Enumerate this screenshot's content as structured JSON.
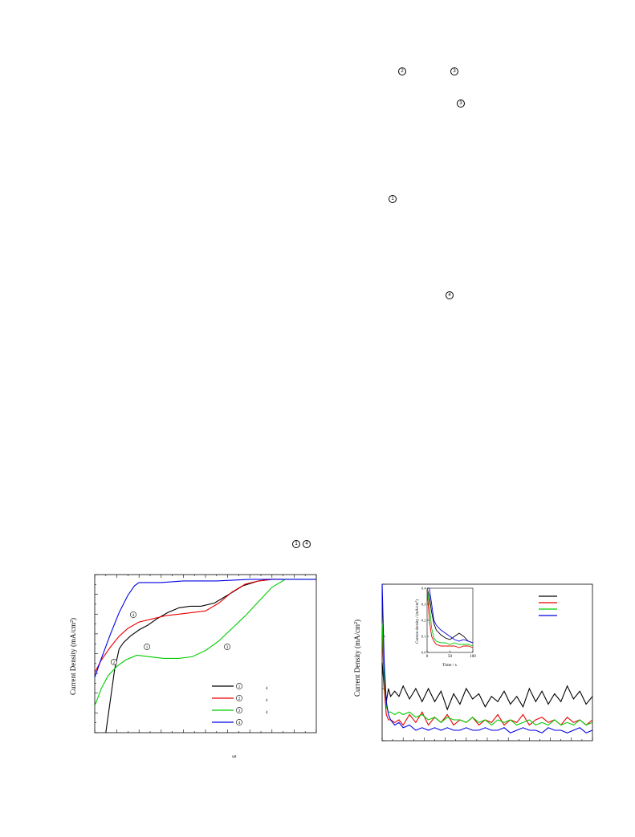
{
  "page_markers": [
    {
      "id": "m-2-top",
      "label": "2"
    },
    {
      "id": "m-3-top",
      "label": "3"
    },
    {
      "id": "m-3-mid",
      "label": "3"
    },
    {
      "id": "m-1-mid",
      "label": "1"
    },
    {
      "id": "m-4-mid",
      "label": "4"
    },
    {
      "id": "m-1-low",
      "label": "1"
    },
    {
      "id": "m-4-low",
      "label": "4"
    }
  ],
  "chart_data": [
    {
      "type": "line",
      "ylabel": "Current Density (mA/cm",
      "ylabel_sup": "2",
      "ylabel_close": ")",
      "xlabel_fragment": "sat",
      "grid": false,
      "legend_placement": "bottom-right",
      "legend": [
        {
          "marker": "1",
          "suffix": "4",
          "color": "#000000"
        },
        {
          "marker": "2",
          "suffix": "4",
          "color": "#e60000"
        },
        {
          "marker": "3",
          "suffix": "4",
          "color": "#00cc00"
        },
        {
          "marker": "4",
          "suffix": "",
          "color": "#0000e6"
        }
      ],
      "curve_markers": [
        {
          "label": "4",
          "color": "#0000e6"
        },
        {
          "label": "2",
          "color": "#e60000"
        },
        {
          "label": "1",
          "color": "#000000"
        },
        {
          "label": "3",
          "color": "#00cc00"
        }
      ],
      "xlim": [
        0,
        100
      ],
      "ylim": [
        0,
        100
      ],
      "series": [
        {
          "color": "#000000",
          "x": [
            5,
            7,
            9,
            11,
            13,
            16,
            20,
            24,
            28,
            33,
            38,
            43,
            48,
            54,
            60,
            67,
            74,
            80,
            85
          ],
          "y": [
            0,
            20,
            40,
            53,
            57,
            61,
            65,
            68,
            72,
            76,
            79,
            80,
            80,
            82,
            87,
            93,
            96,
            97,
            97
          ]
        },
        {
          "color": "#e60000",
          "x": [
            0,
            3,
            7,
            11,
            15,
            20,
            26,
            32,
            38,
            44,
            50,
            56,
            62,
            68,
            74,
            80,
            85
          ],
          "y": [
            38,
            46,
            54,
            61,
            66,
            70,
            72,
            74,
            75,
            76,
            77,
            82,
            89,
            94,
            96,
            97,
            97
          ]
        },
        {
          "color": "#00cc00",
          "x": [
            0,
            3,
            6,
            10,
            14,
            19,
            25,
            31,
            38,
            44,
            50,
            56,
            62,
            68,
            74,
            80,
            86,
            100
          ],
          "y": [
            17,
            28,
            36,
            42,
            46,
            49,
            48,
            47,
            47,
            48,
            52,
            58,
            66,
            74,
            83,
            92,
            97,
            97
          ]
        },
        {
          "color": "#0000e6",
          "x": [
            0,
            3,
            7,
            11,
            15,
            18,
            20,
            22,
            30,
            40,
            55,
            70,
            85,
            100
          ],
          "y": [
            35,
            47,
            62,
            76,
            87,
            93,
            95,
            95,
            95,
            96,
            96,
            97,
            97,
            97
          ]
        }
      ]
    },
    {
      "type": "line",
      "ylabel": "Current Density (mA/cm",
      "ylabel_sup": "2",
      "ylabel_close": ")",
      "grid": false,
      "legend_placement": "top-right",
      "legend": [
        {
          "color": "#000000"
        },
        {
          "color": "#e60000"
        },
        {
          "color": "#00cc00"
        },
        {
          "color": "#0000e6"
        }
      ],
      "xlim": [
        0,
        1000
      ],
      "ylim": [
        0,
        0.6
      ],
      "series": [
        {
          "color": "#000000",
          "x": [
            0,
            10,
            20,
            30,
            40,
            60,
            80,
            100,
            130,
            160,
            190,
            220,
            250,
            280,
            310,
            340,
            370,
            400,
            430,
            460,
            490,
            520,
            550,
            580,
            610,
            640,
            670,
            700,
            730,
            760,
            790,
            820,
            850,
            880,
            910,
            940,
            970,
            1000
          ],
          "y": [
            0.3,
            0.2,
            0.15,
            0.2,
            0.17,
            0.19,
            0.17,
            0.21,
            0.16,
            0.2,
            0.15,
            0.2,
            0.15,
            0.19,
            0.12,
            0.18,
            0.14,
            0.2,
            0.16,
            0.18,
            0.13,
            0.17,
            0.15,
            0.19,
            0.14,
            0.17,
            0.13,
            0.2,
            0.15,
            0.19,
            0.14,
            0.18,
            0.15,
            0.21,
            0.16,
            0.19,
            0.14,
            0.17
          ]
        },
        {
          "color": "#e60000",
          "x": [
            0,
            10,
            20,
            30,
            40,
            60,
            80,
            100,
            130,
            160,
            190,
            220,
            250,
            280,
            310,
            340,
            370,
            400,
            430,
            460,
            490,
            520,
            550,
            580,
            610,
            640,
            670,
            700,
            730,
            760,
            790,
            820,
            850,
            880,
            910,
            940,
            970,
            1000
          ],
          "y": [
            0.45,
            0.2,
            0.1,
            0.08,
            0.08,
            0.07,
            0.08,
            0.06,
            0.1,
            0.07,
            0.11,
            0.06,
            0.09,
            0.07,
            0.1,
            0.06,
            0.08,
            0.07,
            0.09,
            0.06,
            0.08,
            0.07,
            0.1,
            0.06,
            0.08,
            0.07,
            0.1,
            0.06,
            0.08,
            0.09,
            0.07,
            0.08,
            0.06,
            0.09,
            0.07,
            0.08,
            0.06,
            0.08
          ]
        },
        {
          "color": "#00cc00",
          "x": [
            0,
            10,
            20,
            30,
            40,
            60,
            80,
            100,
            130,
            160,
            190,
            220,
            250,
            280,
            310,
            340,
            370,
            400,
            430,
            460,
            490,
            520,
            550,
            580,
            610,
            640,
            670,
            700,
            730,
            760,
            790,
            820,
            850,
            880,
            910,
            940,
            970,
            1000
          ],
          "y": [
            0.45,
            0.25,
            0.13,
            0.11,
            0.11,
            0.1,
            0.11,
            0.1,
            0.11,
            0.09,
            0.1,
            0.08,
            0.09,
            0.07,
            0.09,
            0.08,
            0.08,
            0.07,
            0.09,
            0.07,
            0.08,
            0.06,
            0.08,
            0.07,
            0.08,
            0.06,
            0.07,
            0.08,
            0.06,
            0.07,
            0.06,
            0.08,
            0.06,
            0.07,
            0.06,
            0.08,
            0.06,
            0.07
          ]
        },
        {
          "color": "#0000e6",
          "x": [
            0,
            10,
            20,
            30,
            40,
            60,
            80,
            100,
            130,
            160,
            190,
            220,
            250,
            280,
            310,
            340,
            370,
            400,
            430,
            460,
            490,
            520,
            550,
            580,
            610,
            640,
            670,
            700,
            730,
            760,
            790,
            820,
            850,
            880,
            910,
            940,
            970,
            1000
          ],
          "y": [
            0.6,
            0.3,
            0.15,
            0.1,
            0.08,
            0.06,
            0.07,
            0.05,
            0.06,
            0.04,
            0.05,
            0.04,
            0.05,
            0.04,
            0.05,
            0.04,
            0.04,
            0.05,
            0.04,
            0.04,
            0.05,
            0.04,
            0.04,
            0.05,
            0.03,
            0.04,
            0.05,
            0.04,
            0.04,
            0.03,
            0.05,
            0.04,
            0.04,
            0.03,
            0.04,
            0.05,
            0.03,
            0.04
          ]
        }
      ],
      "inset": {
        "xlabel": "Time / s",
        "ylabel": "Current density / (mA/cm",
        "ylabel_sup": "2",
        "ylabel_close": ")",
        "xlim": [
          0,
          100
        ],
        "ylim": [
          0.0,
          0.4
        ],
        "xticks": [
          "0",
          "50",
          "100"
        ],
        "yticks": [
          "0.0",
          "0.1",
          "0.2",
          "0.3",
          "0.4"
        ],
        "series": [
          {
            "color": "#000000",
            "x": [
              0,
              5,
              10,
              15,
              20,
              30,
              40,
              50,
              60,
              70,
              80,
              90,
              100
            ],
            "y": [
              0.4,
              0.35,
              0.25,
              0.18,
              0.14,
              0.11,
              0.09,
              0.08,
              0.1,
              0.12,
              0.1,
              0.07,
              0.06
            ]
          },
          {
            "color": "#e60000",
            "x": [
              0,
              5,
              10,
              15,
              20,
              30,
              40,
              50,
              60,
              70,
              80,
              90,
              100
            ],
            "y": [
              0.4,
              0.2,
              0.1,
              0.07,
              0.05,
              0.04,
              0.04,
              0.04,
              0.04,
              0.03,
              0.04,
              0.04,
              0.03
            ]
          },
          {
            "color": "#00cc00",
            "x": [
              0,
              5,
              10,
              15,
              20,
              30,
              40,
              50,
              60,
              70,
              80,
              90,
              100
            ],
            "y": [
              0.4,
              0.3,
              0.15,
              0.09,
              0.07,
              0.06,
              0.06,
              0.05,
              0.06,
              0.05,
              0.05,
              0.05,
              0.04
            ]
          },
          {
            "color": "#0000e6",
            "x": [
              0,
              5,
              10,
              15,
              20,
              30,
              40,
              50,
              60,
              70,
              80,
              90,
              100
            ],
            "y": [
              0.4,
              0.4,
              0.3,
              0.2,
              0.17,
              0.14,
              0.12,
              0.1,
              0.08,
              0.07,
              0.08,
              0.07,
              0.06
            ]
          }
        ]
      }
    }
  ]
}
